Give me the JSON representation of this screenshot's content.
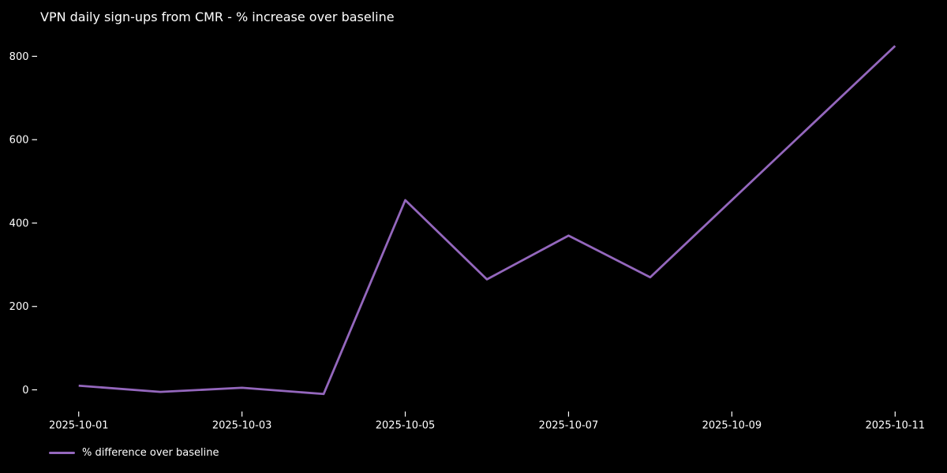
{
  "chart_data": {
    "type": "line",
    "title": "VPN daily sign-ups from CMR - % increase over baseline",
    "x": [
      "2025-10-01",
      "2025-10-02",
      "2025-10-03",
      "2025-10-04",
      "2025-10-05",
      "2025-10-06",
      "2025-10-07",
      "2025-10-08",
      "2025-10-09",
      "2025-10-10",
      "2025-10-11"
    ],
    "series": [
      {
        "name": "% difference over baseline",
        "values": [
          10,
          -5,
          5,
          -10,
          455,
          265,
          370,
          270,
          455,
          640,
          825
        ],
        "color": "#9467bd"
      }
    ],
    "xlabel": "",
    "ylabel": "",
    "yticks": [
      0,
      200,
      400,
      600,
      800
    ],
    "xtick_labels": [
      "2025-10-01",
      "2025-10-03",
      "2025-10-05",
      "2025-10-07",
      "2025-10-09",
      "2025-10-11"
    ],
    "ylim": [
      -52,
      867
    ],
    "grid": false,
    "legend_position": "lower-left",
    "colors": {
      "background": "#000000",
      "text": "#ffffff",
      "tick": "#ffffff"
    }
  }
}
